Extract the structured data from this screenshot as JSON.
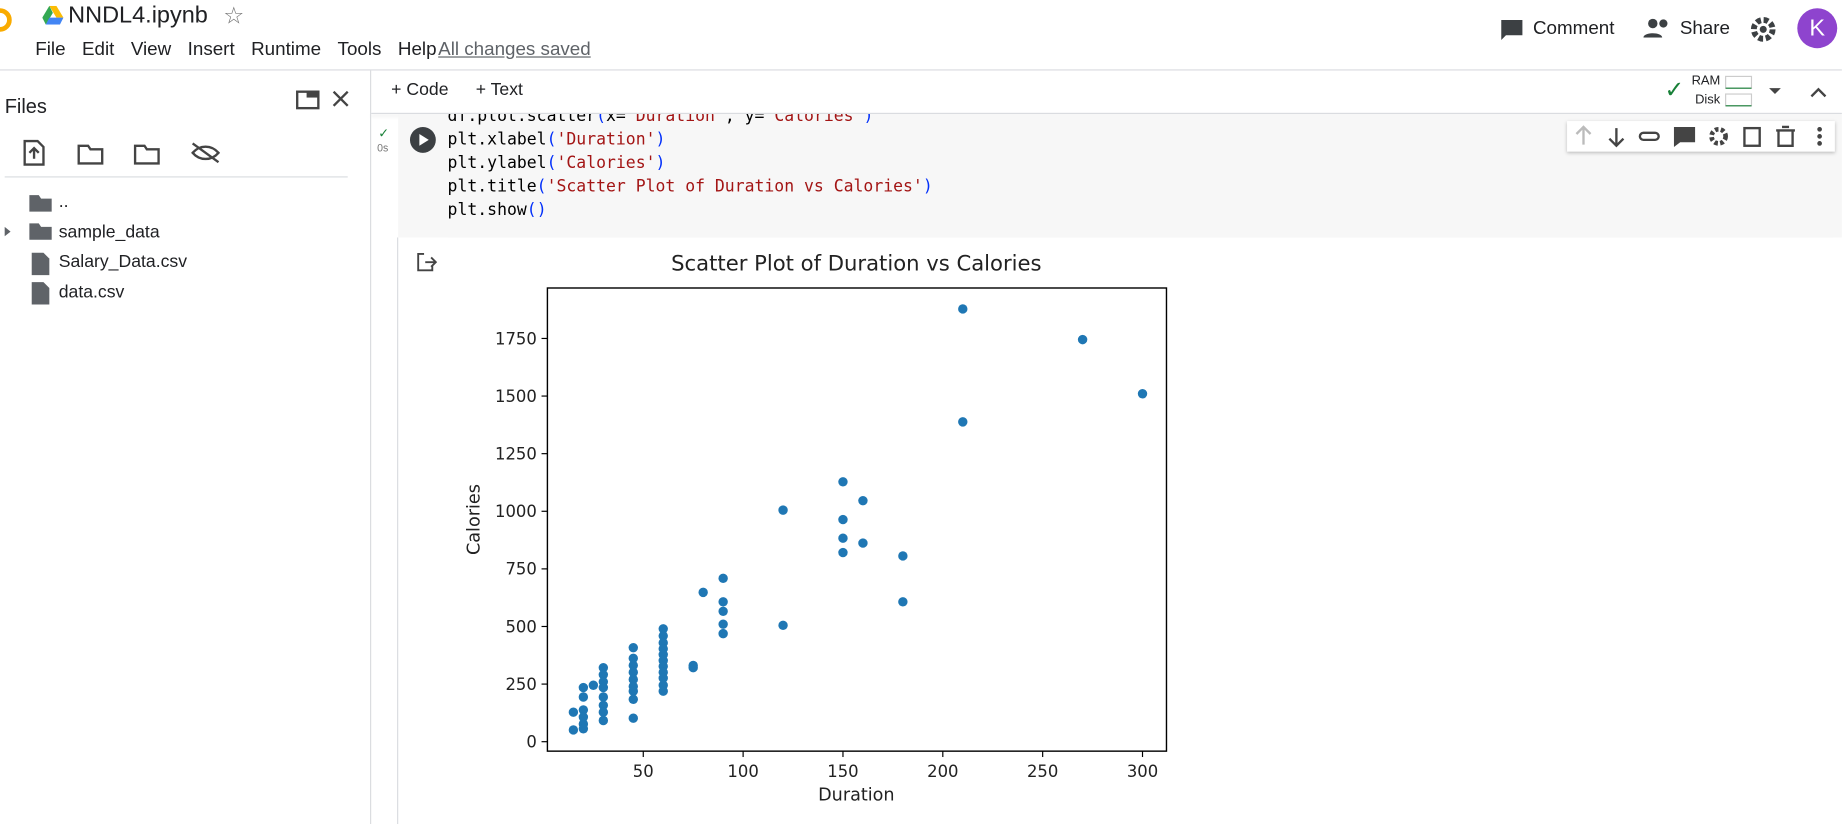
{
  "header": {
    "title": "NNDL4.ipynb",
    "menu": [
      "File",
      "Edit",
      "View",
      "Insert",
      "Runtime",
      "Tools",
      "Help"
    ],
    "status": "All changes saved",
    "comment": "Comment",
    "share": "Share",
    "avatar": "K"
  },
  "toolbar": {
    "code": "Code",
    "text": "Text",
    "ram": "RAM",
    "disk": "Disk"
  },
  "sidebar": {
    "title": "Files",
    "files": [
      "..",
      "sample_data",
      "Salary_Data.csv",
      "data.csv"
    ]
  },
  "cell": {
    "time": "0s",
    "lines": [
      "df.plot.scatter(x='Duration', y='Calories')",
      "plt.xlabel('Duration')",
      "plt.ylabel('Calories')",
      "plt.title('Scatter Plot of Duration vs Calories')",
      "plt.show()"
    ]
  },
  "chart_data": {
    "type": "scatter",
    "title": "Scatter Plot of Duration vs Calories",
    "x_label": "Duration",
    "y_label": "Calories",
    "color": "#1f77b4",
    "x": [
      15,
      15,
      20,
      20,
      20,
      20,
      20,
      20,
      25,
      30,
      30,
      30,
      30,
      30,
      30,
      30,
      30,
      45,
      45,
      45,
      45,
      45,
      45,
      45,
      45,
      45,
      60,
      60,
      60,
      60,
      60,
      60,
      60,
      60,
      60,
      60,
      60,
      75,
      75,
      80,
      90,
      90,
      90,
      90,
      90,
      120,
      120,
      150,
      150,
      150,
      150,
      160,
      160,
      180,
      180,
      210,
      210,
      270,
      300
    ],
    "values": [
      128,
      51,
      235,
      194,
      138,
      107,
      77,
      56,
      245,
      321,
      291,
      260,
      235,
      194,
      158,
      128,
      92,
      408,
      362,
      331,
      301,
      270,
      240,
      219,
      184,
      102,
      490,
      459,
      429,
      403,
      378,
      352,
      327,
      301,
      276,
      245,
      219,
      331,
      321,
      648,
      709,
      607,
      566,
      510,
      469,
      1005,
      505,
      1128,
      964,
      883,
      821,
      1046,
      862,
      806,
      607,
      1878,
      1388,
      1745,
      1510
    ],
    "xlim": [
      2,
      312
    ],
    "ylim": [
      -41,
      1969
    ],
    "xticks": [
      50,
      100,
      150,
      200,
      250,
      300
    ],
    "yticks": [
      0,
      250,
      500,
      750,
      1000,
      1250,
      1500,
      1750
    ],
    "grid": false
  }
}
